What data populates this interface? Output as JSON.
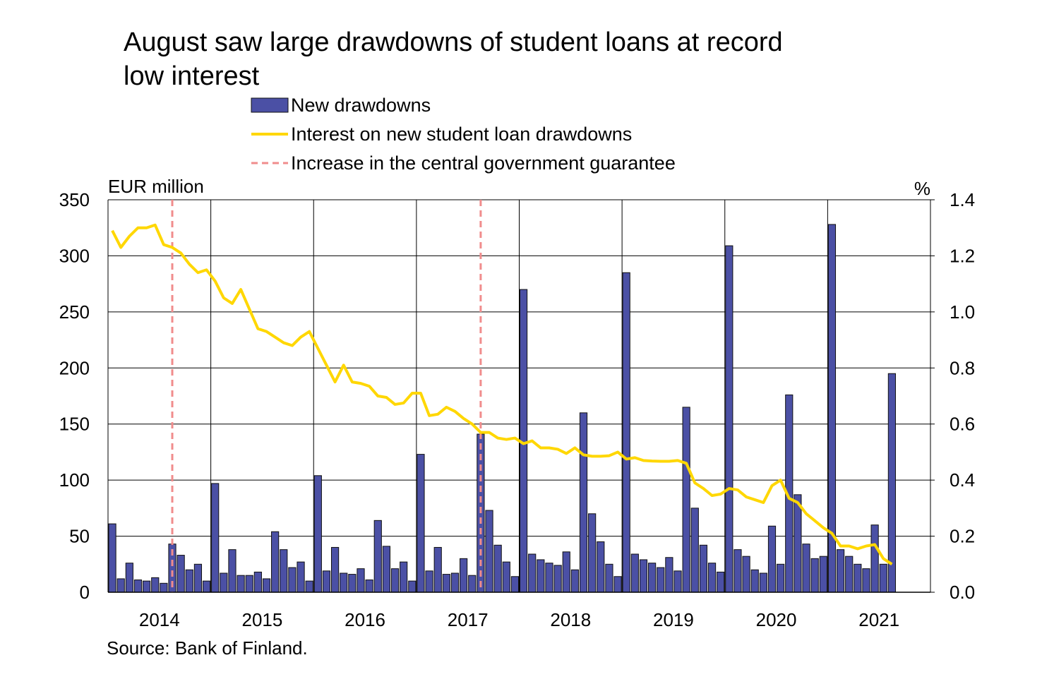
{
  "chart_data": {
    "type": "bar_line",
    "title": "August saw large drawdowns of student loans at record low interest",
    "y_label": "EUR million",
    "y2_label": "%",
    "source": "Source: Bank of Finland.",
    "categories": [
      "2014",
      null,
      null,
      null,
      null,
      null,
      null,
      null,
      null,
      null,
      null,
      null,
      "2015",
      null,
      null,
      null,
      null,
      null,
      null,
      null,
      null,
      null,
      null,
      null,
      "2016",
      null,
      null,
      null,
      null,
      null,
      null,
      null,
      null,
      null,
      null,
      null,
      "2017",
      null,
      null,
      null,
      null,
      null,
      null,
      null,
      null,
      null,
      null,
      null,
      "2018",
      null,
      null,
      null,
      null,
      null,
      null,
      null,
      null,
      null,
      null,
      null,
      "2019",
      null,
      null,
      null,
      null,
      null,
      null,
      null,
      null,
      null,
      null,
      null,
      "2020",
      null,
      null,
      null,
      null,
      null,
      null,
      null,
      null,
      null,
      null,
      null,
      "2021",
      null,
      null,
      null,
      null,
      null,
      null,
      null
    ],
    "series": [
      {
        "name": "New drawdowns",
        "type": "bar",
        "color": "#4b50a5",
        "values": [
          61,
          12,
          26,
          11,
          10,
          13,
          8,
          43,
          33,
          20,
          25,
          10,
          97,
          17,
          38,
          15,
          15,
          18,
          12,
          54,
          38,
          22,
          27,
          10,
          104,
          19,
          40,
          17,
          16,
          21,
          11,
          64,
          41,
          21,
          27,
          10,
          123,
          19,
          40,
          16,
          17,
          30,
          15,
          141,
          73,
          42,
          27,
          14,
          270,
          34,
          29,
          26,
          24,
          36,
          20,
          160,
          70,
          45,
          25,
          14,
          285,
          34,
          29,
          26,
          22,
          31,
          19,
          165,
          75,
          42,
          26,
          18,
          309,
          38,
          32,
          20,
          17,
          59,
          25,
          176,
          87,
          43,
          30,
          32,
          328,
          38,
          32,
          25,
          21,
          60,
          25,
          195
        ]
      },
      {
        "name": "Interest on new student loan drawdowns",
        "type": "line",
        "axis": "y2",
        "color": "#ffd700",
        "values": [
          1.29,
          1.23,
          1.27,
          1.3,
          1.3,
          1.31,
          1.24,
          1.23,
          1.21,
          1.17,
          1.14,
          1.15,
          1.11,
          1.05,
          1.03,
          1.08,
          1.01,
          0.94,
          0.93,
          0.91,
          0.89,
          0.88,
          0.91,
          0.93,
          0.87,
          0.81,
          0.75,
          0.81,
          0.75,
          0.745,
          0.735,
          0.7,
          0.695,
          0.67,
          0.675,
          0.71,
          0.71,
          0.63,
          0.635,
          0.66,
          0.645,
          0.62,
          0.6,
          0.57,
          0.57,
          0.55,
          0.545,
          0.55,
          0.53,
          0.54,
          0.515,
          0.515,
          0.51,
          0.495,
          0.515,
          0.49,
          0.485,
          0.485,
          0.487,
          0.5,
          0.475,
          0.48,
          0.47,
          0.468,
          0.467,
          0.467,
          0.47,
          0.46,
          0.39,
          0.37,
          0.345,
          0.35,
          0.37,
          0.365,
          0.34,
          0.33,
          0.32,
          0.38,
          0.4,
          0.335,
          0.32,
          0.28,
          0.255,
          0.23,
          0.21,
          0.165,
          0.165,
          0.155,
          0.165,
          0.17,
          0.12,
          0.1
        ]
      }
    ],
    "events": {
      "name": "Increase in the central government guarantee",
      "color": "#f08c8c",
      "positions": [
        7,
        43
      ]
    },
    "ylim": [
      0,
      350
    ],
    "yticks": [
      0,
      50,
      100,
      150,
      200,
      250,
      300,
      350
    ],
    "y2lim": [
      0,
      1.4
    ],
    "y2ticks": [
      {
        "value": 0,
        "label": "0.0"
      },
      0.2,
      0.4,
      0.6,
      0.8,
      {
        "value": 1,
        "label": "1.0"
      },
      1.2,
      1.4
    ],
    "grid": true
  }
}
